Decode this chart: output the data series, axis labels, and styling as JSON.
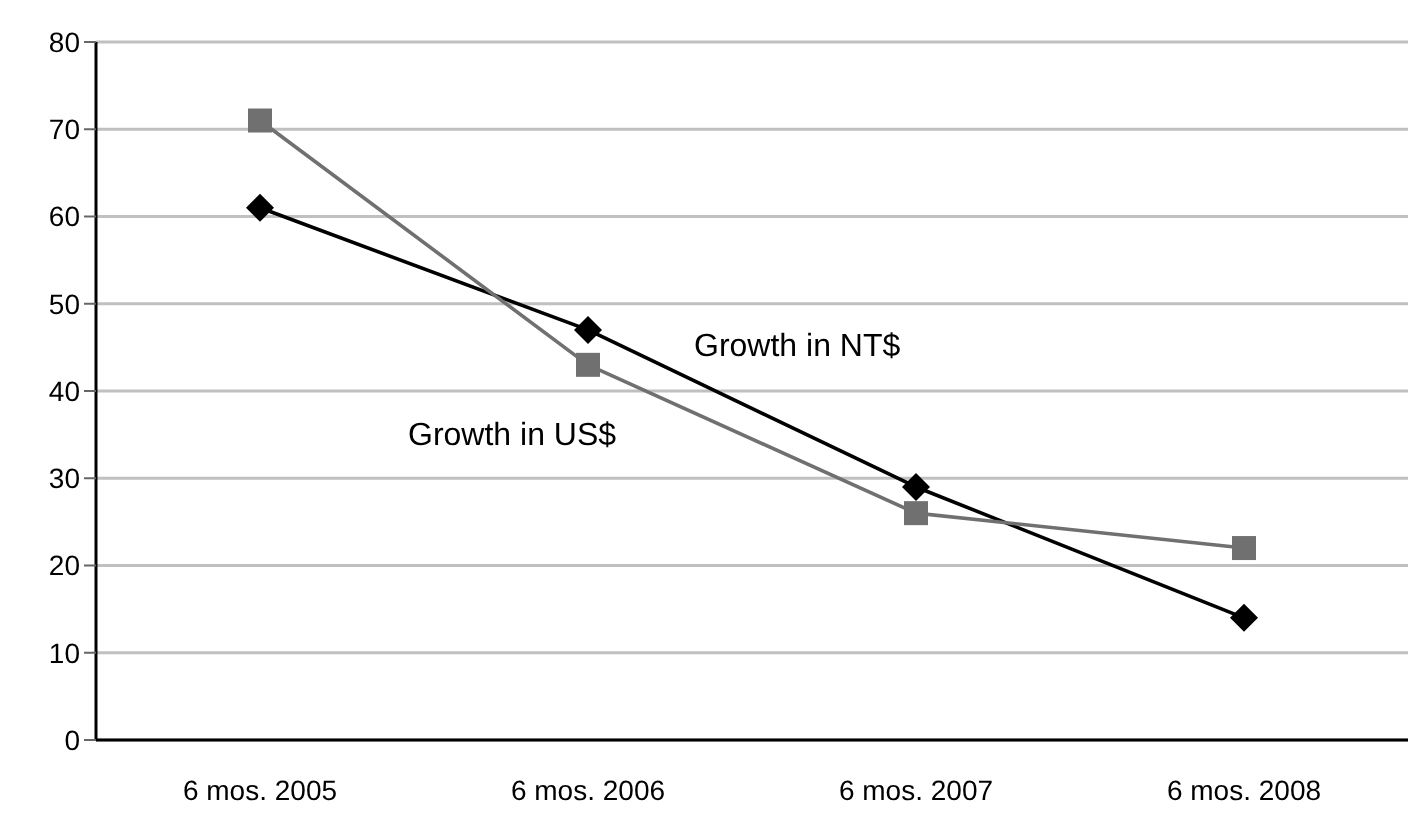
{
  "chart_data": {
    "type": "line",
    "categories": [
      "6 mos. 2005",
      "6 mos. 2006",
      "6 mos. 2007",
      "6 mos. 2008"
    ],
    "series": [
      {
        "name": "Growth in NT$",
        "color": "#000000",
        "values": [
          61,
          47,
          29,
          14
        ],
        "marker": "diamond"
      },
      {
        "name": "Growth in US$",
        "color": "#707070",
        "values": [
          71,
          43,
          26,
          22
        ],
        "marker": "square"
      }
    ],
    "ylim": [
      0,
      80
    ],
    "yticks": [
      0,
      10,
      20,
      30,
      40,
      50,
      60,
      70,
      80
    ],
    "grid": "y",
    "legend": false,
    "line_style": "solid"
  }
}
